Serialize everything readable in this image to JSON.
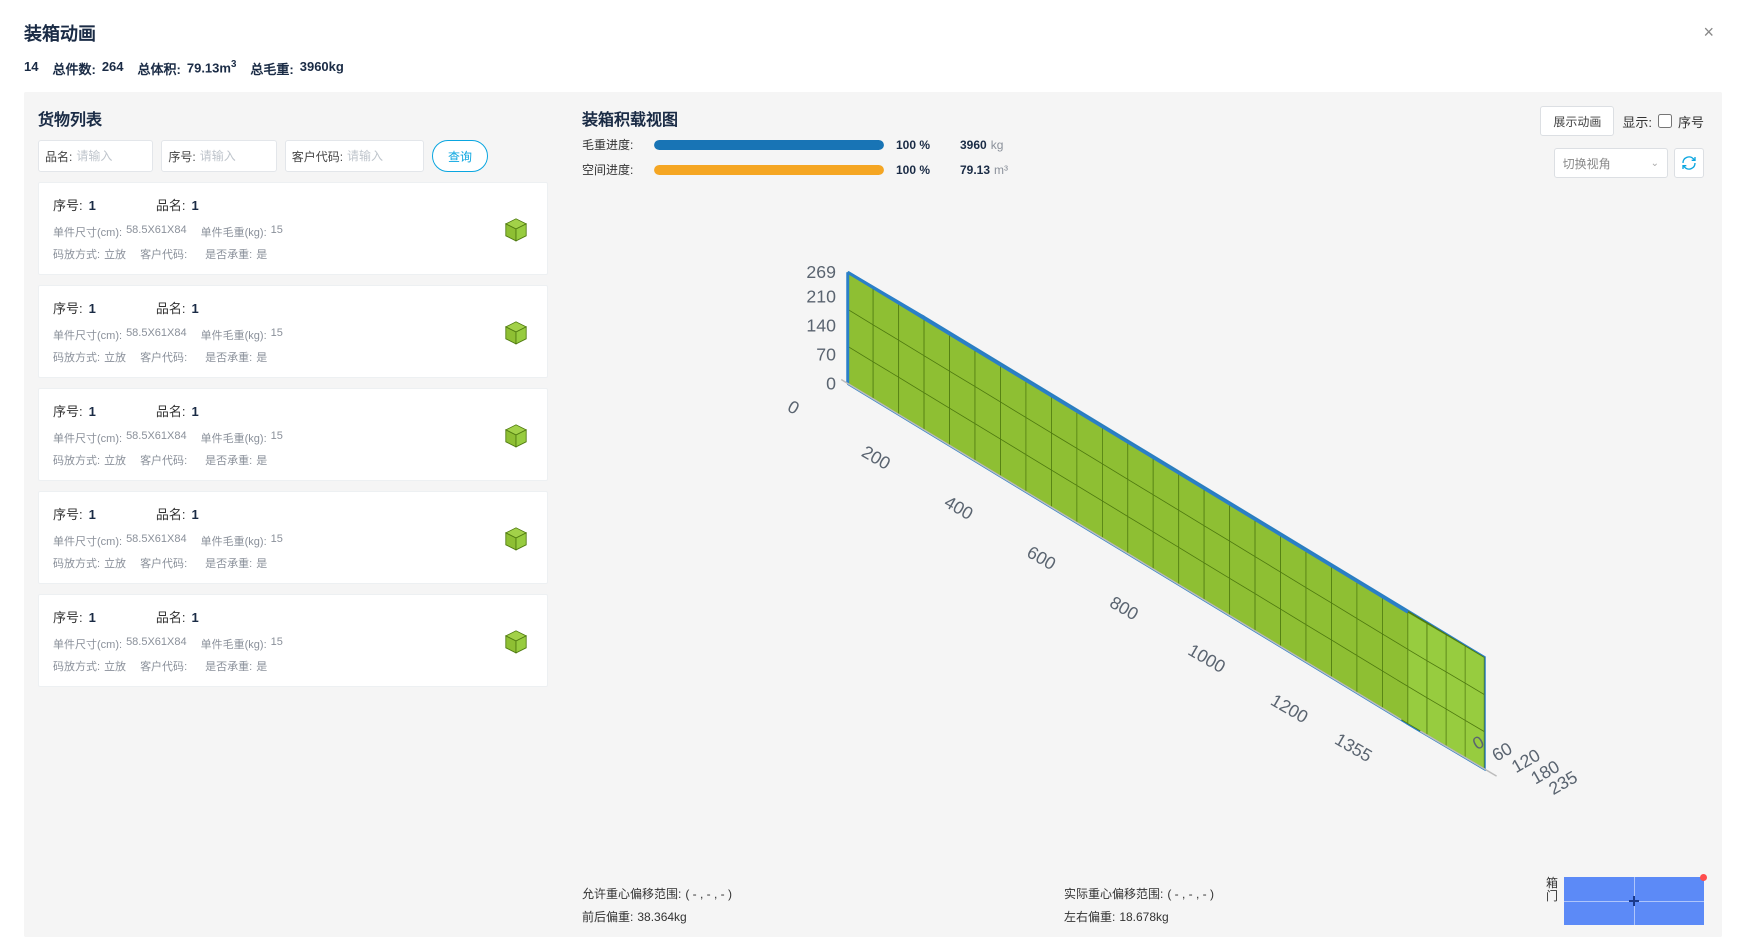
{
  "header": {
    "title": "装箱动画",
    "close": "×"
  },
  "summary": {
    "index": "14",
    "total_count_label": "总件数:",
    "total_count": "264",
    "total_volume_label": "总体积:",
    "total_volume": "79.13m",
    "total_volume_sup": "3",
    "total_weight_label": "总毛重:",
    "total_weight": "3960kg"
  },
  "cargo_panel": {
    "title": "货物列表",
    "search": {
      "pinming_label": "品名:",
      "pinming_placeholder": "请输入",
      "xuhao_label": "序号:",
      "xuhao_placeholder": "请输入",
      "khdm_label": "客户代码:",
      "khdm_placeholder": "请输入",
      "query_btn": "查询"
    },
    "item_labels": {
      "xuhao": "序号:",
      "pinming": "品名:",
      "size": "单件尺寸(cm):",
      "weight": "单件毛重(kg):",
      "stack": "码放方式:",
      "cust": "客户代码:",
      "bear": "是否承重:"
    },
    "items": [
      {
        "xuhao": "1",
        "pinming": "1",
        "size": "58.5X61X84",
        "weight": "15",
        "stack": "立放",
        "cust": "",
        "bear": "是"
      },
      {
        "xuhao": "1",
        "pinming": "1",
        "size": "58.5X61X84",
        "weight": "15",
        "stack": "立放",
        "cust": "",
        "bear": "是"
      },
      {
        "xuhao": "1",
        "pinming": "1",
        "size": "58.5X61X84",
        "weight": "15",
        "stack": "立放",
        "cust": "",
        "bear": "是"
      },
      {
        "xuhao": "1",
        "pinming": "1",
        "size": "58.5X61X84",
        "weight": "15",
        "stack": "立放",
        "cust": "",
        "bear": "是"
      },
      {
        "xuhao": "1",
        "pinming": "1",
        "size": "58.5X61X84",
        "weight": "15",
        "stack": "立放",
        "cust": "",
        "bear": "是"
      }
    ]
  },
  "viz": {
    "title": "装箱积载视图",
    "show_anim_btn": "展示动画",
    "show_label": "显示:",
    "show_checkbox_label": "序号",
    "view_select_placeholder": "切换视角",
    "progress": {
      "weight_label": "毛重进度:",
      "weight_pct": "100",
      "weight_pct_unit": "%",
      "weight_val": "3960",
      "weight_unit": "kg",
      "weight_color": "#1874b5",
      "space_label": "空间进度:",
      "space_pct": "100",
      "space_pct_unit": "%",
      "space_val": "79.13",
      "space_unit": "m³",
      "space_color": "#f5a623"
    },
    "axes": {
      "height_ticks": [
        "269",
        "210",
        "140",
        "70",
        "0"
      ],
      "length_ticks": [
        "0",
        "200",
        "400",
        "600",
        "800",
        "1000",
        "1200",
        "1355"
      ],
      "width_ticks": [
        "235",
        "180",
        "120",
        "60",
        "0"
      ]
    },
    "colors": {
      "box_fill_top": "#a2d149",
      "box_fill_left": "#8ebf33",
      "box_fill_right": "#97cc3f",
      "box_edge": "#4f7a10",
      "container_frame": "#2a7fc8",
      "container_side": "#a9cbe6",
      "axis_label": "#5a6470"
    },
    "bottom": {
      "allow_label": "允许重心偏移范围:",
      "allow_val": "( - , - , - )",
      "fb_label": "前后偏重:",
      "fb_val": "38.364kg",
      "actual_label": "实际重心偏移范围:",
      "actual_val": "( - , - , - )",
      "lr_label": "左右偏重:",
      "lr_val": "18.678kg",
      "door_label_1": "箱",
      "door_label_2": "门"
    }
  }
}
